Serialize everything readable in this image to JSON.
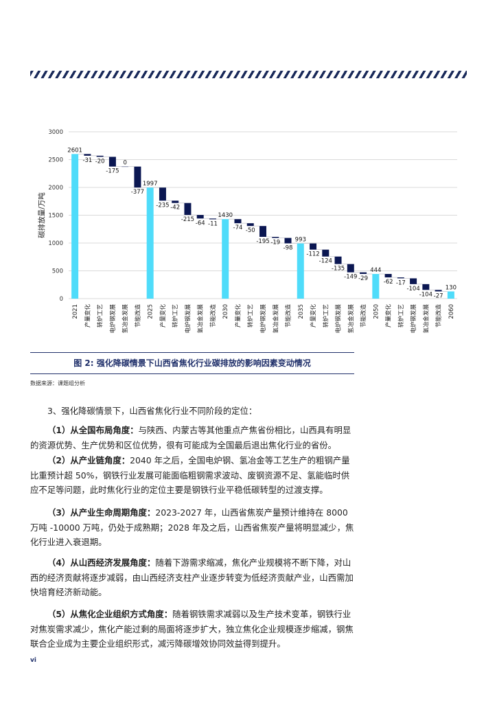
{
  "chart_data": {
    "type": "waterfall",
    "ylabel": "碳排放量/万吨",
    "ylim": [
      0,
      3000
    ],
    "yticks": [
      0,
      500,
      1000,
      1500,
      2000,
      2500,
      3000
    ],
    "grid": true,
    "categories": [
      "2021",
      "产量变化",
      "转炉工艺",
      "电炉钢发展",
      "氢冶金发展",
      "节能改造",
      "2025",
      "产量变化",
      "转炉工艺",
      "电炉钢发展",
      "氢冶金发展",
      "节能改造",
      "2030",
      "产量变化",
      "转炉工艺",
      "电炉钢发展",
      "氢冶金发展",
      "节能改造",
      "2035",
      "产量变化",
      "转炉工艺",
      "电炉钢发展",
      "氢冶金发展",
      "节能改造",
      "2050",
      "产量变化",
      "转炉工艺",
      "电炉钢发展",
      "氢冶金发展",
      "节能改造",
      "2060"
    ],
    "values": [
      2601,
      -31,
      -20,
      -175,
      0,
      -377,
      1997,
      -235,
      -42,
      -215,
      -64,
      -11,
      1430,
      -74,
      -50,
      -195,
      -19,
      -98,
      993,
      -112,
      -124,
      -135,
      -149,
      -29,
      444,
      -62,
      -17,
      -104,
      -104,
      -27,
      130
    ],
    "is_total": [
      true,
      false,
      false,
      false,
      false,
      false,
      true,
      false,
      false,
      false,
      false,
      false,
      true,
      false,
      false,
      false,
      false,
      false,
      true,
      false,
      false,
      false,
      false,
      false,
      true,
      false,
      false,
      false,
      false,
      false,
      true
    ],
    "colors": {
      "total": "#4fdcfa",
      "change": "#0b1752",
      "grid": "#d9d9d9"
    }
  },
  "caption": "图 2: 强化降碳情景下山西省焦化行业碳排放的影响因素变动情况",
  "source": "数据来源：课题组分析",
  "heading": "3、强化降碳情景下，山西省焦化行业不同阶段的定位：",
  "paragraphs": [
    {
      "lead": "（1）从全国布局角度：",
      "text": "与陕西、内蒙古等其他重点产焦省份相比，山西具有明显的资源优势、生产优势和区位优势，很有可能成为全国最后退出焦化行业的省份。"
    },
    {
      "lead": "（2）从产业链角度：",
      "text": "2040 年之后，全国电炉钢、氢冶金等工艺生产的粗钢产量比重预计超 50%，钢铁行业发展可能面临粗钢需求波动、废钢资源不足、氢能临时供应不足等问题，此时焦化行业的定位主要是钢铁行业平稳低碳转型的过渡支撑。"
    },
    {
      "lead": "（3）从产业生命周期角度：",
      "text": "2023-2027 年，山西省焦炭产量预计维持在 8000 万吨 -10000 万吨，仍处于成熟期；2028 年及之后，山西省焦炭产量将明显减少，焦化行业进入衰退期。"
    },
    {
      "lead": "（4）从山西经济发展角度：",
      "text": "随着下游需求缩减，焦化产业规模将不断下降，对山西的经济贡献将逐步减弱，由山西经济支柱产业逐步转变为低经济贡献产业，山西需加快培育经济新动能。"
    },
    {
      "lead": "（5）从焦化企业组织方式角度：",
      "text": "随着钢铁需求减弱以及生产技术变革，钢铁行业对焦炭需求减少，焦化产能过剩的局面将逐步扩大，独立焦化企业规模逐步缩减，钢焦联合企业成为主要企业组织形式，减污降碳增效协同效益得到提升。"
    }
  ],
  "page_number": "vi"
}
